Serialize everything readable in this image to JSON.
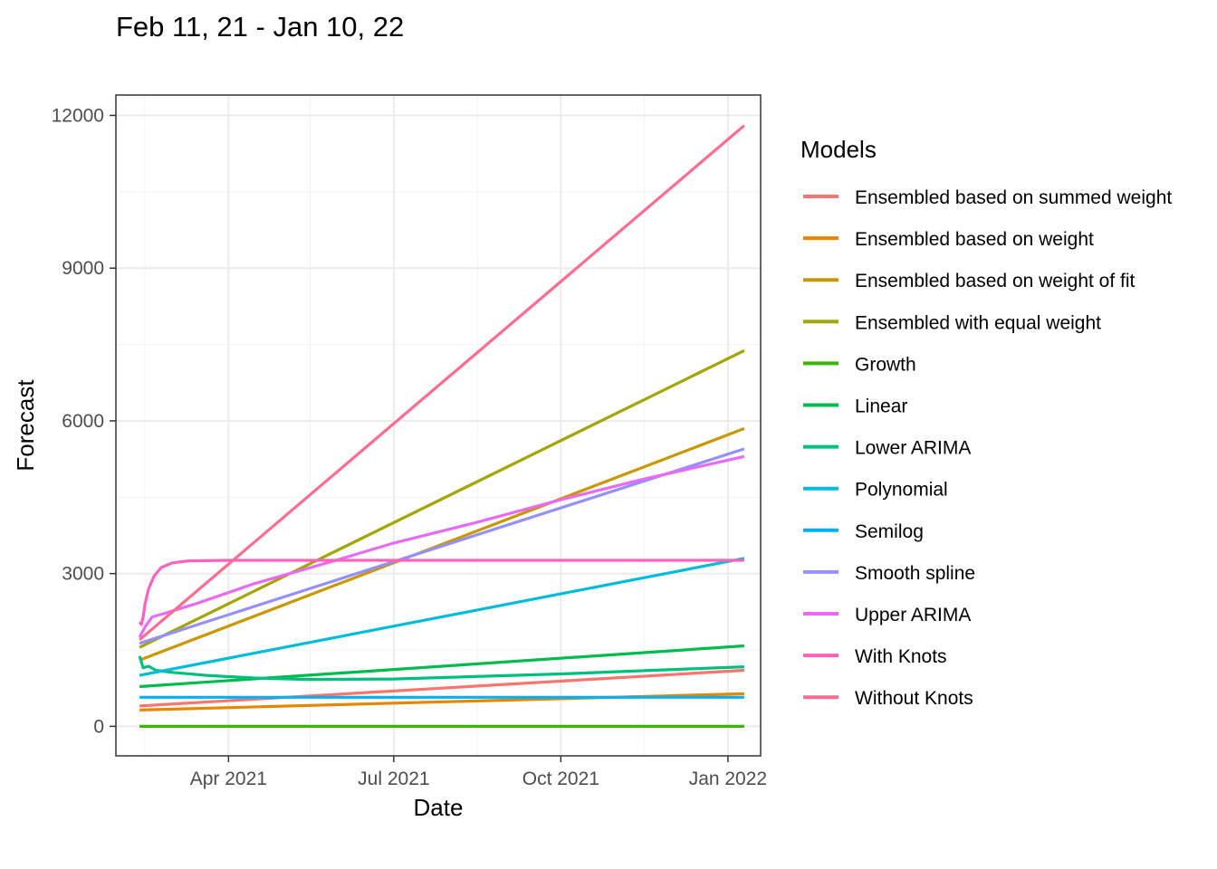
{
  "chart_data": {
    "type": "line",
    "title": "Feb 11, 21 - Jan 10, 22",
    "xlabel": "Date",
    "ylabel": "Forecast",
    "xlim": [
      "2021-01-29",
      "2022-01-19"
    ],
    "ylim": [
      -580,
      12400
    ],
    "grid": true,
    "legend_position": "right",
    "legend_title": "Models",
    "y_ticks": [
      {
        "value": 0,
        "label": "0"
      },
      {
        "value": 3000,
        "label": "3000"
      },
      {
        "value": 6000,
        "label": "6000"
      },
      {
        "value": 9000,
        "label": "9000"
      },
      {
        "value": 12000,
        "label": "12000"
      }
    ],
    "x_ticks": [
      {
        "value": "2021-04-01",
        "label": "Apr 2021"
      },
      {
        "value": "2021-07-01",
        "label": "Jul 2021"
      },
      {
        "value": "2021-10-01",
        "label": "Oct 2021"
      },
      {
        "value": "2022-01-01",
        "label": "Jan 2022"
      }
    ],
    "x_minor_breaks": [
      "2021-02-14",
      "2021-05-16",
      "2021-08-16",
      "2021-11-16"
    ],
    "y_minor_breaks": [
      1500,
      4500,
      7500,
      10500
    ],
    "series": [
      {
        "name": "Ensembled based on summed weight",
        "color": "#F8766D",
        "points": [
          [
            "2021-02-11",
            400
          ],
          [
            "2022-01-10",
            1100
          ]
        ]
      },
      {
        "name": "Ensembled based on weight",
        "color": "#E58700",
        "points": [
          [
            "2021-02-11",
            320
          ],
          [
            "2022-01-10",
            640
          ]
        ]
      },
      {
        "name": "Ensembled based on weight of fit",
        "color": "#C99800",
        "points": [
          [
            "2021-02-11",
            1300
          ],
          [
            "2022-01-10",
            5850
          ]
        ]
      },
      {
        "name": "Ensembled with equal weight",
        "color": "#A3A500",
        "points": [
          [
            "2021-02-11",
            1550
          ],
          [
            "2022-01-10",
            7380
          ]
        ]
      },
      {
        "name": "Growth",
        "color": "#39B600",
        "points": [
          [
            "2021-02-11",
            0
          ],
          [
            "2022-01-10",
            0
          ]
        ]
      },
      {
        "name": "Linear",
        "color": "#00BB4E",
        "points": [
          [
            "2021-02-11",
            780
          ],
          [
            "2022-01-10",
            1580
          ]
        ]
      },
      {
        "name": "Lower ARIMA",
        "color": "#00BF7D",
        "points": [
          [
            "2021-02-11",
            1380
          ],
          [
            "2021-02-13",
            1150
          ],
          [
            "2021-02-16",
            1180
          ],
          [
            "2021-02-20",
            1100
          ],
          [
            "2021-03-01",
            1060
          ],
          [
            "2021-03-20",
            1000
          ],
          [
            "2021-04-15",
            950
          ],
          [
            "2021-05-15",
            920
          ],
          [
            "2021-07-01",
            930
          ],
          [
            "2021-10-01",
            1030
          ],
          [
            "2022-01-10",
            1170
          ]
        ]
      },
      {
        "name": "Polynomial",
        "color": "#00BCD8",
        "points": [
          [
            "2021-02-11",
            1000
          ],
          [
            "2022-01-10",
            3300
          ]
        ]
      },
      {
        "name": "Semilog",
        "color": "#00B0F6",
        "points": [
          [
            "2021-02-11",
            570
          ],
          [
            "2022-01-10",
            570
          ]
        ]
      },
      {
        "name": "Smooth spline",
        "color": "#9590FF",
        "points": [
          [
            "2021-02-11",
            1630
          ],
          [
            "2022-01-10",
            5450
          ]
        ]
      },
      {
        "name": "Upper ARIMA",
        "color": "#E76BF3",
        "points": [
          [
            "2021-02-11",
            1750
          ],
          [
            "2021-02-14",
            1950
          ],
          [
            "2021-02-18",
            2150
          ],
          [
            "2021-02-25",
            2220
          ],
          [
            "2021-03-15",
            2420
          ],
          [
            "2021-04-15",
            2800
          ],
          [
            "2021-06-01",
            3280
          ],
          [
            "2021-07-01",
            3600
          ],
          [
            "2021-08-15",
            4000
          ],
          [
            "2021-10-01",
            4450
          ],
          [
            "2021-11-15",
            4850
          ],
          [
            "2022-01-10",
            5300
          ]
        ]
      },
      {
        "name": "With Knots",
        "color": "#FF62BC",
        "points": [
          [
            "2021-02-11",
            2050
          ],
          [
            "2021-02-12",
            2000
          ],
          [
            "2021-02-13",
            2150
          ],
          [
            "2021-02-14",
            2400
          ],
          [
            "2021-02-16",
            2700
          ],
          [
            "2021-02-19",
            2950
          ],
          [
            "2021-02-23",
            3120
          ],
          [
            "2021-03-01",
            3210
          ],
          [
            "2021-03-10",
            3250
          ],
          [
            "2021-04-01",
            3260
          ],
          [
            "2022-01-10",
            3260
          ]
        ]
      },
      {
        "name": "Without Knots",
        "color": "#FF6C91",
        "points": [
          [
            "2021-02-11",
            1700
          ],
          [
            "2022-01-10",
            11800
          ]
        ]
      }
    ]
  }
}
